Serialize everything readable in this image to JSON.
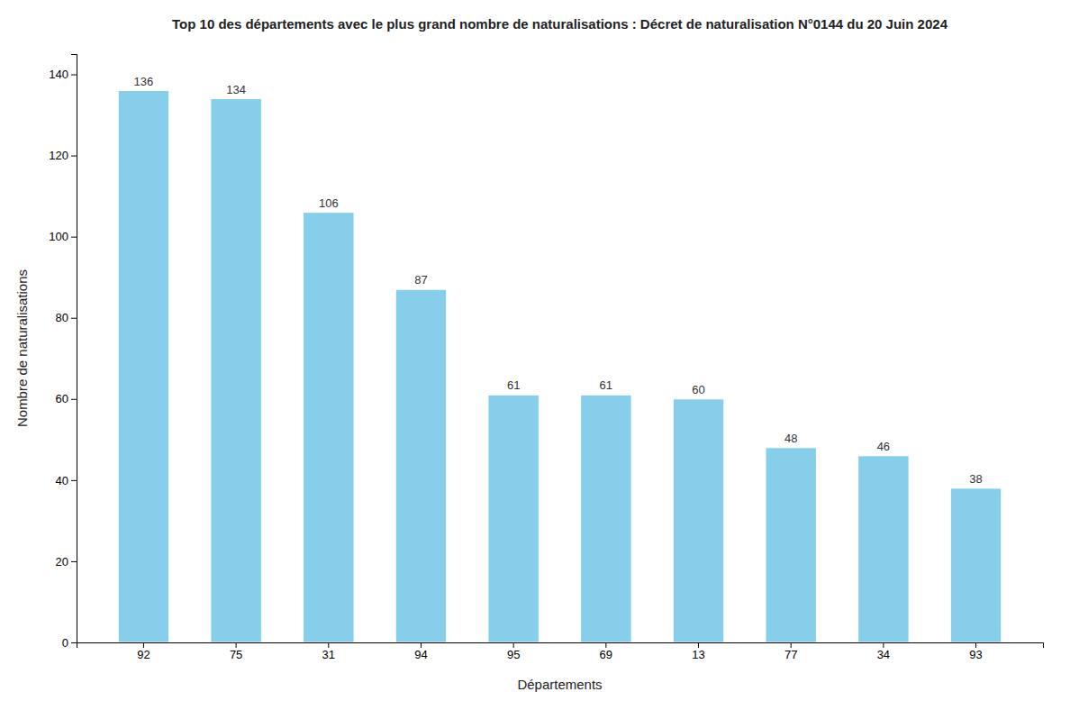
{
  "chart_data": {
    "type": "bar",
    "title": "Top 10 des départements avec le plus grand nombre de naturalisations : Décret de naturalisation N°0144 du 20 Juin 2024",
    "xlabel": "Départements",
    "ylabel": "Nombre de naturalisations",
    "categories": [
      "92",
      "75",
      "31",
      "94",
      "95",
      "69",
      "13",
      "77",
      "34",
      "93"
    ],
    "values": [
      136,
      134,
      106,
      87,
      61,
      61,
      60,
      48,
      46,
      38
    ],
    "color": "#87CEEB",
    "ylim": [
      0,
      145
    ],
    "yticks": [
      0,
      20,
      40,
      60,
      80,
      100,
      120,
      140
    ],
    "grid": false,
    "data_labels": true
  }
}
